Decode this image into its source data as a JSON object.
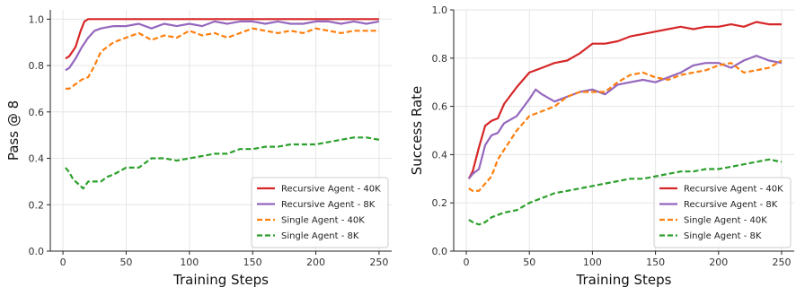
{
  "chart_data": [
    {
      "type": "line",
      "xlabel": "Training Steps",
      "ylabel": "Pass @ 8",
      "xlim": [
        -10,
        260
      ],
      "ylim": [
        0.0,
        1.04
      ],
      "xticks": [
        0,
        50,
        100,
        150,
        200,
        250
      ],
      "yticks": [
        0.0,
        0.2,
        0.4,
        0.6,
        0.8,
        1.0
      ],
      "xtick_labels": [
        "0",
        "50",
        "100",
        "150",
        "200",
        "250"
      ],
      "ytick_labels": [
        "0.0",
        "0.2",
        "0.4",
        "0.6",
        "0.8",
        "1.0"
      ],
      "grid": true,
      "legend_position": "bottom-right",
      "series": [
        {
          "name": "Recursive Agent - 40K",
          "color": "#d62728",
          "dash": "solid",
          "x": [
            2,
            5,
            10,
            14,
            17,
            20,
            30,
            50,
            100,
            150,
            200,
            250
          ],
          "y": [
            0.83,
            0.84,
            0.88,
            0.95,
            0.99,
            1.0,
            1.0,
            1.0,
            1.0,
            1.0,
            1.0,
            1.0
          ]
        },
        {
          "name": "Recursive Agent - 8K",
          "color": "#9467bd",
          "dash": "solid",
          "x": [
            2,
            5,
            10,
            15,
            20,
            25,
            30,
            40,
            50,
            60,
            70,
            80,
            90,
            100,
            110,
            120,
            130,
            140,
            150,
            160,
            170,
            180,
            190,
            200,
            210,
            220,
            230,
            240,
            250
          ],
          "y": [
            0.78,
            0.79,
            0.83,
            0.88,
            0.92,
            0.95,
            0.96,
            0.97,
            0.97,
            0.98,
            0.96,
            0.98,
            0.97,
            0.98,
            0.97,
            0.99,
            0.98,
            0.99,
            0.99,
            0.98,
            0.99,
            0.98,
            0.98,
            0.99,
            0.99,
            0.98,
            0.99,
            0.98,
            0.99
          ]
        },
        {
          "name": "Single Agent - 40K",
          "color": "#ff7f0e",
          "dash": "dashed",
          "x": [
            2,
            5,
            10,
            15,
            20,
            25,
            30,
            40,
            50,
            60,
            70,
            80,
            90,
            100,
            110,
            120,
            130,
            140,
            150,
            160,
            170,
            180,
            190,
            200,
            210,
            220,
            230,
            240,
            250
          ],
          "y": [
            0.7,
            0.7,
            0.72,
            0.74,
            0.75,
            0.8,
            0.86,
            0.9,
            0.92,
            0.94,
            0.91,
            0.93,
            0.92,
            0.95,
            0.93,
            0.94,
            0.92,
            0.94,
            0.96,
            0.95,
            0.94,
            0.95,
            0.94,
            0.96,
            0.95,
            0.94,
            0.95,
            0.95,
            0.95
          ]
        },
        {
          "name": "Single Agent - 8K",
          "color": "#2ca02c",
          "dash": "dashed",
          "x": [
            2,
            5,
            8,
            12,
            16,
            20,
            25,
            30,
            35,
            40,
            50,
            60,
            70,
            80,
            90,
            100,
            110,
            120,
            130,
            140,
            150,
            160,
            170,
            180,
            190,
            200,
            210,
            220,
            230,
            240,
            250
          ],
          "y": [
            0.36,
            0.34,
            0.31,
            0.29,
            0.27,
            0.3,
            0.3,
            0.3,
            0.32,
            0.33,
            0.36,
            0.36,
            0.4,
            0.4,
            0.39,
            0.4,
            0.41,
            0.42,
            0.42,
            0.44,
            0.44,
            0.45,
            0.45,
            0.46,
            0.46,
            0.46,
            0.47,
            0.48,
            0.49,
            0.49,
            0.48
          ]
        }
      ]
    },
    {
      "type": "line",
      "xlabel": "Training Steps",
      "ylabel": "Success Rate",
      "xlim": [
        -10,
        260
      ],
      "ylim": [
        0.0,
        1.0
      ],
      "xticks": [
        0,
        50,
        100,
        150,
        200,
        250
      ],
      "yticks": [
        0.0,
        0.2,
        0.4,
        0.6,
        0.8,
        1.0
      ],
      "xtick_labels": [
        "0",
        "50",
        "100",
        "150",
        "200",
        "250"
      ],
      "ytick_labels": [
        "0.0",
        "0.2",
        "0.4",
        "0.6",
        "0.8",
        "1.0"
      ],
      "grid": true,
      "legend_position": "bottom-right",
      "series": [
        {
          "name": "Recursive Agent - 40K",
          "color": "#d62728",
          "dash": "solid",
          "x": [
            2,
            5,
            10,
            15,
            20,
            25,
            30,
            40,
            50,
            60,
            70,
            80,
            90,
            100,
            110,
            120,
            130,
            140,
            150,
            160,
            170,
            180,
            190,
            200,
            210,
            220,
            230,
            240,
            250
          ],
          "y": [
            0.3,
            0.33,
            0.43,
            0.52,
            0.54,
            0.55,
            0.61,
            0.68,
            0.74,
            0.76,
            0.78,
            0.79,
            0.82,
            0.86,
            0.86,
            0.87,
            0.89,
            0.9,
            0.91,
            0.92,
            0.93,
            0.92,
            0.93,
            0.93,
            0.94,
            0.93,
            0.95,
            0.94,
            0.94
          ]
        },
        {
          "name": "Recursive Agent - 8K",
          "color": "#9467bd",
          "dash": "solid",
          "x": [
            2,
            5,
            10,
            15,
            20,
            25,
            30,
            40,
            50,
            55,
            60,
            70,
            80,
            90,
            100,
            110,
            120,
            130,
            140,
            150,
            160,
            170,
            180,
            190,
            200,
            210,
            220,
            230,
            240,
            250
          ],
          "y": [
            0.3,
            0.32,
            0.34,
            0.44,
            0.48,
            0.49,
            0.53,
            0.56,
            0.63,
            0.67,
            0.65,
            0.62,
            0.64,
            0.66,
            0.67,
            0.65,
            0.69,
            0.7,
            0.71,
            0.7,
            0.72,
            0.74,
            0.77,
            0.78,
            0.78,
            0.76,
            0.79,
            0.81,
            0.79,
            0.78
          ]
        },
        {
          "name": "Single Agent - 40K",
          "color": "#ff7f0e",
          "dash": "dashed",
          "x": [
            2,
            5,
            10,
            15,
            20,
            25,
            30,
            40,
            50,
            60,
            70,
            80,
            90,
            100,
            110,
            120,
            130,
            140,
            150,
            160,
            170,
            180,
            190,
            200,
            210,
            220,
            230,
            240,
            250
          ],
          "y": [
            0.26,
            0.25,
            0.25,
            0.28,
            0.31,
            0.38,
            0.42,
            0.5,
            0.56,
            0.58,
            0.6,
            0.64,
            0.66,
            0.66,
            0.66,
            0.7,
            0.73,
            0.74,
            0.72,
            0.71,
            0.73,
            0.74,
            0.75,
            0.77,
            0.78,
            0.74,
            0.75,
            0.76,
            0.79
          ]
        },
        {
          "name": "Single Agent - 8K",
          "color": "#2ca02c",
          "dash": "dashed",
          "x": [
            2,
            5,
            10,
            15,
            20,
            30,
            40,
            50,
            60,
            70,
            80,
            90,
            100,
            110,
            120,
            130,
            140,
            150,
            160,
            170,
            180,
            190,
            200,
            210,
            220,
            230,
            240,
            250
          ],
          "y": [
            0.13,
            0.12,
            0.11,
            0.12,
            0.14,
            0.16,
            0.17,
            0.2,
            0.22,
            0.24,
            0.25,
            0.26,
            0.27,
            0.28,
            0.29,
            0.3,
            0.3,
            0.31,
            0.32,
            0.33,
            0.33,
            0.34,
            0.34,
            0.35,
            0.36,
            0.37,
            0.38,
            0.37
          ]
        }
      ]
    }
  ]
}
